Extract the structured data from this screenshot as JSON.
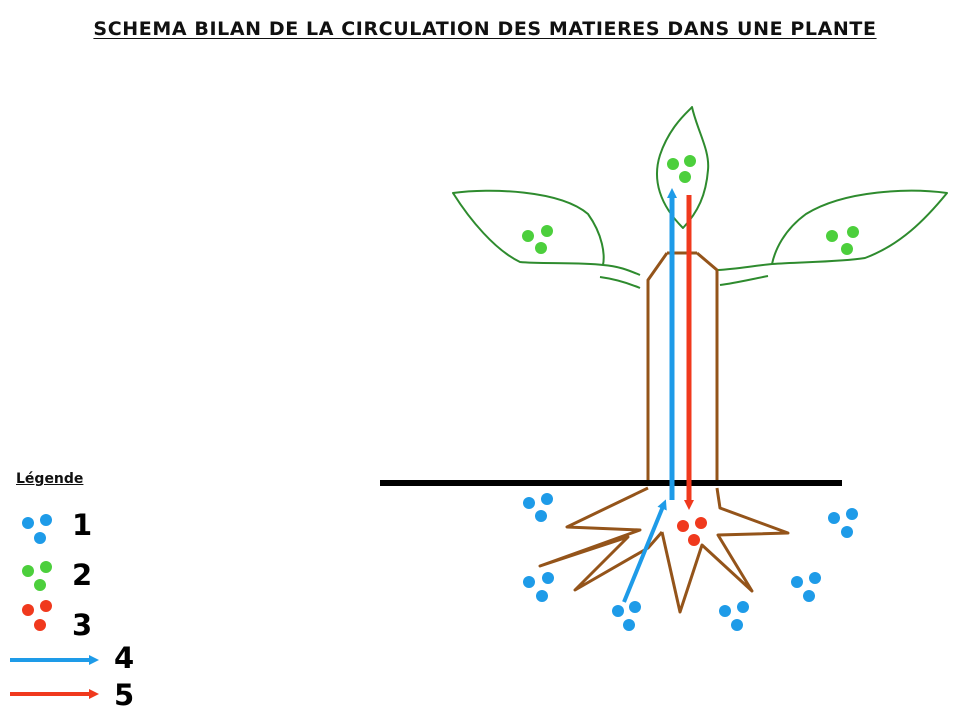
{
  "title": "SCHEMA BILAN DE LA CIRCULATION DES MATIERES DANS UNE PLANTE",
  "legend": {
    "title": "Légende",
    "items": [
      {
        "label": "1",
        "symbol": "water-mineral-dots-icon",
        "color": "#1e9be8"
      },
      {
        "label": "2",
        "symbol": "green-dots-icon",
        "color": "#4ccf3c"
      },
      {
        "label": "3",
        "symbol": "red-dots-icon",
        "color": "#f0391d"
      },
      {
        "label": "4",
        "symbol": "blue-arrow-icon",
        "color": "#1e9be8"
      },
      {
        "label": "5",
        "symbol": "red-arrow-icon",
        "color": "#f0391d"
      }
    ]
  },
  "colors": {
    "leaf_outline": "#2e8b2e",
    "stem_root": "#94541a",
    "ground": "#000000",
    "blue": "#1e9be8",
    "green": "#4ccf3c",
    "red": "#f0391d"
  }
}
